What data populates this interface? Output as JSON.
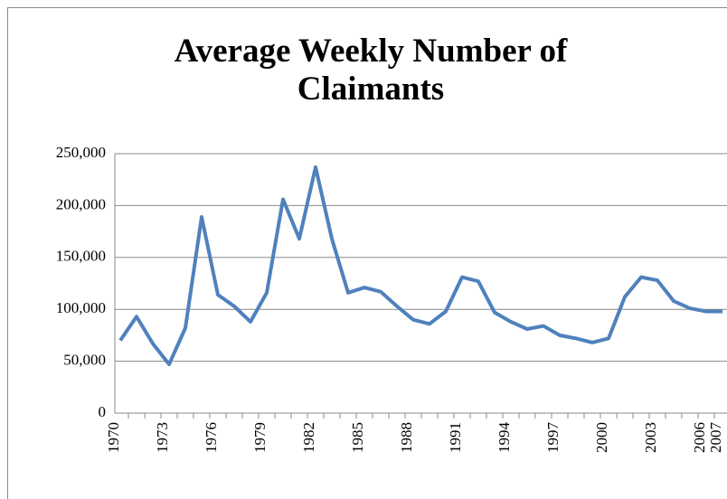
{
  "chart_data": {
    "type": "line",
    "title": "Average Weekly Number of Claimants",
    "categories": [
      "1970",
      null,
      null,
      "1973",
      null,
      null,
      "1976",
      null,
      null,
      "1979",
      null,
      null,
      "1982",
      null,
      null,
      "1985",
      null,
      null,
      "1988",
      null,
      null,
      "1991",
      null,
      null,
      "1994",
      null,
      null,
      "1997",
      null,
      null,
      "2000",
      null,
      null,
      "2003",
      null,
      null,
      "2006",
      "2007"
    ],
    "series": [
      {
        "name": "Average Weekly Number of Claimants",
        "color": "#4f81bd",
        "values": [
          70000,
          93000,
          67000,
          47000,
          82000,
          189000,
          114000,
          103000,
          88000,
          116000,
          206000,
          168000,
          237000,
          168000,
          116000,
          121000,
          117000,
          103000,
          90000,
          86000,
          98000,
          131000,
          127000,
          97000,
          88000,
          81000,
          84000,
          75000,
          72000,
          68000,
          72000,
          112000,
          131000,
          128000,
          108000,
          101000,
          98000,
          98000
        ]
      }
    ],
    "ylim": [
      0,
      250000
    ],
    "yticks": [
      0,
      {
        "value": 50000,
        "label": "50,000"
      },
      {
        "value": 100000,
        "label": "100,000"
      },
      {
        "value": 150000,
        "label": "150,000"
      },
      {
        "value": 200000,
        "label": "200,000"
      },
      {
        "value": 250000,
        "label": "250,000"
      }
    ],
    "grid": true
  }
}
